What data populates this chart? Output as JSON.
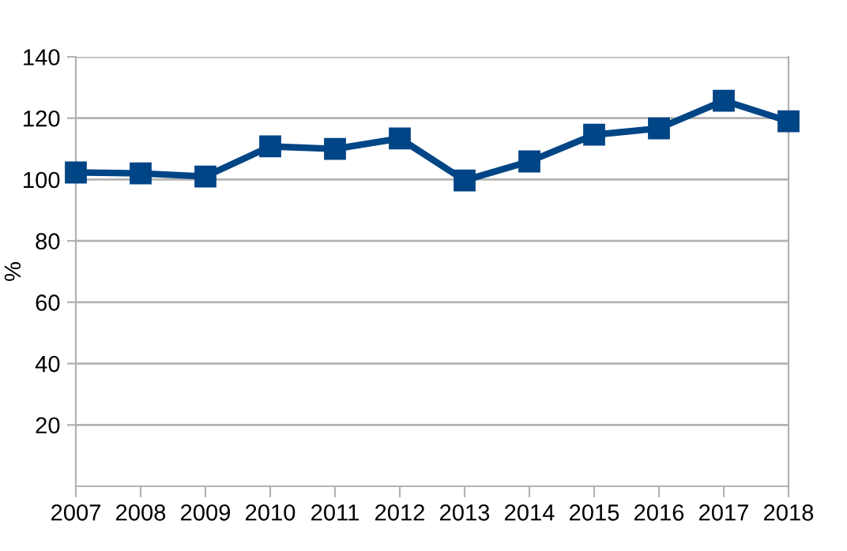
{
  "chart_data": {
    "type": "line",
    "ylabel": "%",
    "categories": [
      "2007",
      "2008",
      "2009",
      "2010",
      "2011",
      "2012",
      "2013",
      "2014",
      "2015",
      "2016",
      "2017",
      "2018"
    ],
    "series": [
      {
        "color": "#004586",
        "values": [
          102.3,
          102,
          101,
          110.8,
          110,
          113.4,
          99.7,
          105.9,
          114.6,
          116.7,
          125.7,
          119
        ]
      }
    ],
    "ylim": [
      0,
      140
    ],
    "yticks": [
      20,
      40,
      60,
      80,
      100,
      120,
      140
    ],
    "grid": "y",
    "marker": "square",
    "line_style": "solid"
  }
}
